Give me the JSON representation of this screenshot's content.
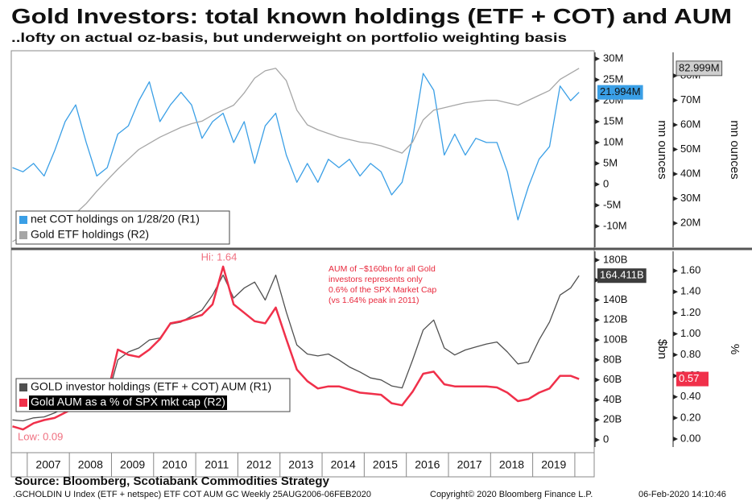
{
  "source": "Source: Bloomberg, Scotiabank Commodities Strategy",
  "footer": [
    ".GCHOLDIN U Index (ETF + netspec) ETF COT AUM GC  Weekly 25AUG2006-06FEB2020",
    "Copyright© 2020 Bloomberg Finance L.P.",
    "06-Feb-2020 14:10:46"
  ],
  "chart_data": [
    {
      "type": "line",
      "title": "Gold Investors: total known holdings (ETF + COT) and AUM",
      "subtitle": "..lofty on actual oz-basis, but underweight on portfolio weighting basis",
      "x": [
        2006.65,
        2006.9,
        2007.15,
        2007.4,
        2007.65,
        2007.9,
        2008.15,
        2008.4,
        2008.65,
        2008.9,
        2009.15,
        2009.4,
        2009.65,
        2009.9,
        2010.15,
        2010.4,
        2010.65,
        2010.9,
        2011.15,
        2011.4,
        2011.65,
        2011.9,
        2012.15,
        2012.4,
        2012.65,
        2012.9,
        2013.15,
        2013.4,
        2013.65,
        2013.9,
        2014.15,
        2014.4,
        2014.65,
        2014.9,
        2015.15,
        2015.4,
        2015.65,
        2015.9,
        2016.15,
        2016.4,
        2016.65,
        2016.9,
        2017.15,
        2017.4,
        2017.65,
        2017.9,
        2018.15,
        2018.4,
        2018.65,
        2018.9,
        2019.15,
        2019.4,
        2019.65,
        2019.9,
        2020.1
      ],
      "xlim": [
        2006.64,
        2020.46
      ],
      "ylim": [
        -15040000,
        31550000
      ],
      "yticks": [
        {
          "value": -10000000,
          "label": "-10M"
        },
        {
          "value": -5000000,
          "label": "-5M"
        },
        0,
        {
          "value": 5000000,
          "label": "5M"
        },
        {
          "value": 10000000,
          "label": "10M"
        },
        {
          "value": 15000000,
          "label": "15M"
        },
        {
          "value": 20000000,
          "label": "20M"
        },
        {
          "value": 25000000,
          "label": "25M"
        },
        {
          "value": 30000000,
          "label": "30M"
        }
      ],
      "y2lim": [
        10200000,
        89500000
      ],
      "y2ticks": [
        {
          "value": 20000000,
          "label": "20M"
        },
        {
          "value": 30000000,
          "label": "30M"
        },
        {
          "value": 40000000,
          "label": "40M"
        },
        {
          "value": 50000000,
          "label": "50M"
        },
        {
          "value": 60000000,
          "label": "60M"
        },
        {
          "value": 70000000,
          "label": "70M"
        },
        {
          "value": 80000000,
          "label": "80M"
        }
      ],
      "y_label": "mn ounces",
      "y2_label": "mn ounces",
      "series": [
        {
          "name": "net COT holdings on 1/28/20 (R1)",
          "color": "#3a9fe6",
          "axis": "y",
          "last_label": "21.994M",
          "values": [
            4000000,
            3000000,
            5000000,
            2000000,
            8000000,
            15000000,
            19000000,
            10000000,
            2000000,
            4000000,
            12000000,
            14000000,
            20000000,
            24500000,
            15000000,
            19000000,
            22000000,
            19000000,
            11000000,
            15000000,
            17000000,
            10000000,
            15000000,
            5000000,
            14000000,
            17000000,
            7000000,
            500000,
            5000000,
            500000,
            6000000,
            4000000,
            6000000,
            2000000,
            5000000,
            3000000,
            -2500000,
            500000,
            11000000,
            26500000,
            22500000,
            7000000,
            12000000,
            7000000,
            11000000,
            10000000,
            10000000,
            3000000,
            -8500000,
            -500000,
            6000000,
            9000000,
            23500000,
            20000000,
            21994000
          ]
        },
        {
          "name": "Gold ETF holdings (R2)",
          "color": "#a6a6a6",
          "axis": "y2",
          "last_label": "82.999M",
          "values": [
            12500000,
            15000000,
            17000000,
            18500000,
            19500000,
            21000000,
            24000000,
            28000000,
            33000000,
            37500000,
            42000000,
            46000000,
            50000000,
            52500000,
            55000000,
            57000000,
            59000000,
            60500000,
            61500000,
            64000000,
            66000000,
            68000000,
            73000000,
            79000000,
            82000000,
            83000000,
            78000000,
            66000000,
            60000000,
            58000000,
            56500000,
            55000000,
            54000000,
            53000000,
            52500000,
            51500000,
            50000000,
            48500000,
            53000000,
            62000000,
            66000000,
            67000000,
            68000000,
            69000000,
            69500000,
            70000000,
            70000000,
            69000000,
            68000000,
            70000000,
            72000000,
            74000000,
            78500000,
            81000000,
            82999000
          ]
        }
      ]
    },
    {
      "type": "line",
      "x": [
        2006.65,
        2006.9,
        2007.15,
        2007.4,
        2007.65,
        2007.9,
        2008.15,
        2008.4,
        2008.65,
        2008.9,
        2009.15,
        2009.4,
        2009.65,
        2009.9,
        2010.15,
        2010.4,
        2010.65,
        2010.9,
        2011.15,
        2011.4,
        2011.65,
        2011.9,
        2012.15,
        2012.4,
        2012.65,
        2012.9,
        2013.15,
        2013.4,
        2013.65,
        2013.9,
        2014.15,
        2014.4,
        2014.65,
        2014.9,
        2015.15,
        2015.4,
        2015.65,
        2015.9,
        2016.15,
        2016.4,
        2016.65,
        2016.9,
        2017.15,
        2017.4,
        2017.65,
        2017.9,
        2018.15,
        2018.4,
        2018.65,
        2018.9,
        2019.15,
        2019.4,
        2019.65,
        2019.9,
        2020.1
      ],
      "xlim": [
        2006.64,
        2020.46
      ],
      "categories": [
        "2007",
        "2008",
        "2009",
        "2010",
        "2011",
        "2012",
        "2013",
        "2014",
        "2015",
        "2016",
        "2017",
        "2018",
        "2019"
      ],
      "xticks": [
        2007,
        2008,
        2009,
        2010,
        2011,
        2012,
        2013,
        2014,
        2015,
        2016,
        2017,
        2018,
        2019,
        2020
      ],
      "ylim": [
        -7200000000,
        188800000000
      ],
      "yticks": [
        0,
        {
          "value": 20000000000,
          "label": "20B"
        },
        {
          "value": 40000000000,
          "label": "40B"
        },
        {
          "value": 60000000000,
          "label": "60B"
        },
        {
          "value": 80000000000,
          "label": "80B"
        },
        {
          "value": 100000000000,
          "label": "100B"
        },
        {
          "value": 120000000000,
          "label": "120B"
        },
        {
          "value": 140000000000,
          "label": "140B"
        },
        {
          "value": 160000000000,
          "label": "160B"
        },
        {
          "value": 180000000000,
          "label": "180B"
        }
      ],
      "y2lim": [
        -0.077,
        1.785
      ],
      "y2ticks": [
        {
          "value": 0,
          "label": "0.00"
        },
        {
          "value": 0.2,
          "label": "0.20"
        },
        {
          "value": 0.4,
          "label": "0.40"
        },
        {
          "value": 0.6,
          "label": "0.60"
        },
        {
          "value": 0.8,
          "label": "0.80"
        },
        {
          "value": 1,
          "label": "1.00"
        },
        {
          "value": 1.2,
          "label": "1.20"
        },
        {
          "value": 1.4,
          "label": "1.40"
        },
        {
          "value": 1.6,
          "label": "1.60"
        }
      ],
      "y_label": "$bn",
      "y2_label": "%",
      "annotations": {
        "high": "Hi: 1.64",
        "low": "Low: 0.09",
        "note": [
          "AUM of ~$160bn for all Gold",
          "investors represents only",
          "0.6% of the SPX Market Cap",
          "(vs 1.64% peak in 2011)"
        ]
      },
      "series": [
        {
          "name": "GOLD investor holdings (ETF + COT) AUM (R1)",
          "color": "#505050",
          "axis": "y",
          "last_label": "164.411B",
          "values": [
            20000000000,
            19000000000,
            22000000000,
            23000000000,
            27000000000,
            32000000000,
            38000000000,
            34000000000,
            36000000000,
            41000000000,
            80000000000,
            88000000000,
            92000000000,
            100000000000,
            102000000000,
            116000000000,
            118000000000,
            124000000000,
            130000000000,
            145000000000,
            165000000000,
            142000000000,
            152000000000,
            158000000000,
            140000000000,
            165000000000,
            128000000000,
            95000000000,
            86000000000,
            84000000000,
            86000000000,
            80000000000,
            73000000000,
            68000000000,
            62000000000,
            60000000000,
            54000000000,
            52000000000,
            80000000000,
            110000000000,
            120000000000,
            92000000000,
            85000000000,
            90000000000,
            93000000000,
            96000000000,
            98000000000,
            88000000000,
            76000000000,
            78000000000,
            100000000000,
            118000000000,
            145000000000,
            152000000000,
            164411000000
          ]
        },
        {
          "name": "Gold AUM as a % of SPX mkt cap (R2)",
          "color": "#f0304a",
          "axis": "y2",
          "last_label": "0.57",
          "values": [
            0.12,
            0.09,
            0.15,
            0.18,
            0.2,
            0.25,
            0.3,
            0.3,
            0.35,
            0.42,
            0.85,
            0.8,
            0.78,
            0.85,
            0.95,
            1.1,
            1.12,
            1.15,
            1.18,
            1.28,
            1.64,
            1.28,
            1.2,
            1.12,
            1.1,
            1.25,
            0.95,
            0.66,
            0.55,
            0.48,
            0.5,
            0.5,
            0.47,
            0.44,
            0.43,
            0.42,
            0.34,
            0.32,
            0.45,
            0.62,
            0.64,
            0.52,
            0.5,
            0.5,
            0.5,
            0.5,
            0.49,
            0.44,
            0.36,
            0.38,
            0.44,
            0.48,
            0.6,
            0.6,
            0.57
          ]
        }
      ]
    }
  ]
}
